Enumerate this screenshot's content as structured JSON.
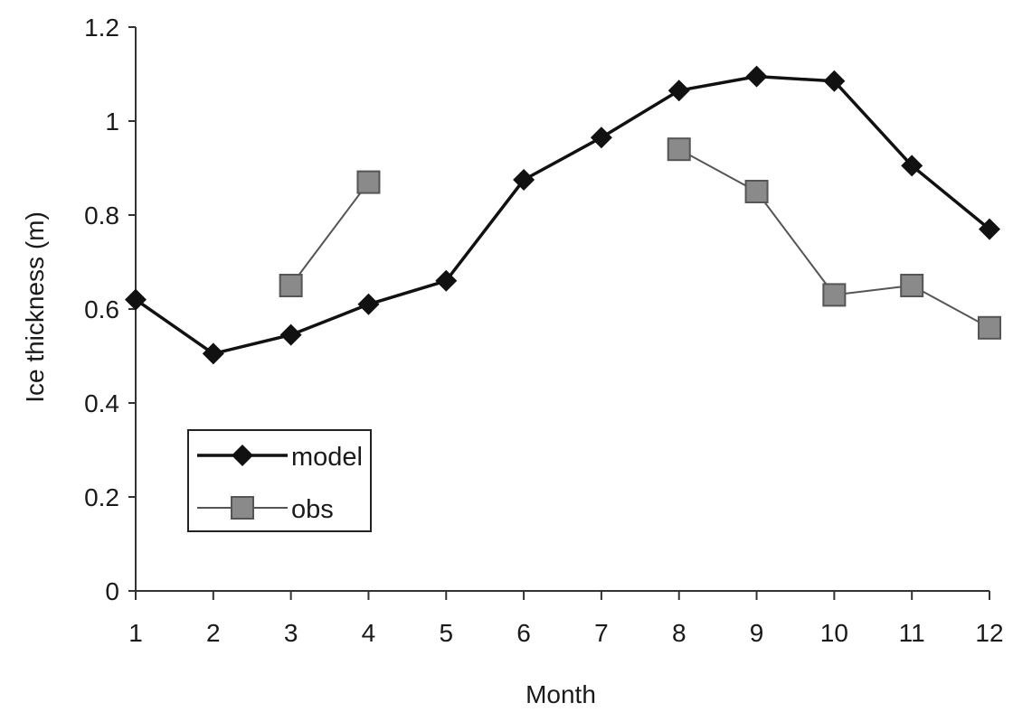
{
  "chart_data": {
    "type": "line",
    "xlabel": "Month",
    "ylabel": "Ice thickness (m)",
    "categories": [
      "1",
      "2",
      "3",
      "4",
      "5",
      "6",
      "7",
      "8",
      "9",
      "10",
      "11",
      "12"
    ],
    "ylim": [
      0,
      1.2
    ],
    "yticks": [
      "0",
      "0.2",
      "0.4",
      "0.6",
      "0.8",
      "1",
      "1.2"
    ],
    "legend_position": "lower-left",
    "grid": false,
    "series": [
      {
        "name": "model",
        "marker": "diamond",
        "color": "#111111",
        "values": [
          0.62,
          0.505,
          0.545,
          0.61,
          0.66,
          0.875,
          0.965,
          1.065,
          1.095,
          1.085,
          0.905,
          0.77
        ]
      },
      {
        "name": "obs",
        "marker": "square",
        "color": "#555555",
        "fill": "#8a8a8a",
        "values": [
          null,
          null,
          0.65,
          0.87,
          null,
          null,
          null,
          0.94,
          0.85,
          0.63,
          0.65,
          0.56
        ]
      }
    ]
  }
}
